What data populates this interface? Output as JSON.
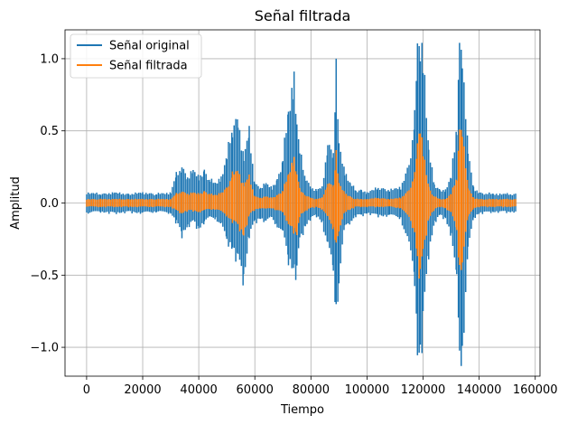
{
  "chart_data": {
    "type": "line",
    "title": "Señal filtrada",
    "xlabel": "Tiempo",
    "ylabel": "Amplitud",
    "xlim": [
      -7700,
      161700
    ],
    "ylim": [
      -1.2,
      1.2
    ],
    "grid": true,
    "legend_position": "top-left",
    "x_ticks": [
      0,
      20000,
      40000,
      60000,
      80000,
      100000,
      120000,
      140000,
      160000
    ],
    "x_tick_labels": [
      "0",
      "20000",
      "40000",
      "60000",
      "80000",
      "100000",
      "120000",
      "140000",
      "160000"
    ],
    "y_ticks": [
      -1.0,
      -0.5,
      0.0,
      0.5,
      1.0
    ],
    "y_tick_labels": [
      "−1.0",
      "−0.5",
      "0.0",
      "0.5",
      "1.0"
    ],
    "series": [
      {
        "name": "Señal original",
        "color": "#1f77b4",
        "x": [
          0,
          5000,
          10000,
          15000,
          20000,
          25000,
          30000,
          32000,
          34000,
          36000,
          38000,
          40000,
          42000,
          44000,
          46000,
          48000,
          50000,
          52000,
          54000,
          56000,
          58000,
          60000,
          62000,
          64000,
          66000,
          68000,
          70000,
          72000,
          74000,
          75000,
          76000,
          78000,
          80000,
          82000,
          84000,
          86000,
          88000,
          89000,
          90000,
          92000,
          94000,
          96000,
          98000,
          100000,
          104000,
          108000,
          112000,
          115000,
          117000,
          118000,
          119000,
          120000,
          122000,
          124000,
          126000,
          128000,
          130000,
          132000,
          133000,
          134000,
          136000,
          138000,
          140000,
          145000,
          150000,
          153000
        ],
        "upper": [
          0.08,
          0.07,
          0.08,
          0.07,
          0.08,
          0.07,
          0.08,
          0.22,
          0.28,
          0.2,
          0.25,
          0.2,
          0.25,
          0.18,
          0.15,
          0.2,
          0.35,
          0.6,
          0.65,
          0.35,
          0.55,
          0.15,
          0.12,
          0.15,
          0.12,
          0.18,
          0.35,
          0.7,
          0.98,
          0.6,
          0.4,
          0.2,
          0.12,
          0.1,
          0.12,
          0.45,
          0.4,
          1.02,
          0.45,
          0.25,
          0.15,
          0.1,
          0.1,
          0.08,
          0.12,
          0.1,
          0.12,
          0.3,
          0.65,
          1.2,
          1.2,
          1.2,
          0.4,
          0.15,
          0.1,
          0.1,
          0.2,
          0.6,
          1.2,
          1.2,
          0.4,
          0.12,
          0.08,
          0.07,
          0.07,
          0.07
        ],
        "lower": [
          -0.08,
          -0.07,
          -0.08,
          -0.07,
          -0.08,
          -0.07,
          -0.08,
          -0.15,
          -0.25,
          -0.18,
          -0.15,
          -0.2,
          -0.15,
          -0.12,
          -0.12,
          -0.18,
          -0.3,
          -0.35,
          -0.45,
          -0.6,
          -0.25,
          -0.15,
          -0.12,
          -0.15,
          -0.12,
          -0.18,
          -0.25,
          -0.45,
          -0.52,
          -0.55,
          -0.3,
          -0.18,
          -0.12,
          -0.1,
          -0.15,
          -0.35,
          -0.55,
          -0.85,
          -0.65,
          -0.2,
          -0.15,
          -0.1,
          -0.1,
          -0.08,
          -0.1,
          -0.1,
          -0.12,
          -0.35,
          -0.6,
          -1.15,
          -1.2,
          -0.95,
          -0.4,
          -0.15,
          -0.1,
          -0.12,
          -0.25,
          -0.65,
          -1.2,
          -1.2,
          -0.4,
          -0.12,
          -0.08,
          -0.07,
          -0.07,
          -0.07
        ]
      },
      {
        "name": "Señal filtrada",
        "color": "#ff7f0e",
        "x": [
          0,
          5000,
          10000,
          15000,
          20000,
          25000,
          30000,
          32000,
          34000,
          36000,
          38000,
          40000,
          42000,
          44000,
          46000,
          48000,
          50000,
          52000,
          54000,
          56000,
          58000,
          60000,
          62000,
          64000,
          66000,
          68000,
          70000,
          72000,
          74000,
          75000,
          76000,
          78000,
          80000,
          82000,
          84000,
          86000,
          88000,
          89000,
          90000,
          92000,
          94000,
          96000,
          98000,
          100000,
          104000,
          108000,
          112000,
          115000,
          117000,
          118000,
          119000,
          120000,
          122000,
          124000,
          126000,
          128000,
          130000,
          132000,
          133000,
          134000,
          136000,
          138000,
          140000,
          145000,
          150000,
          153000
        ],
        "upper": [
          0.03,
          0.03,
          0.03,
          0.03,
          0.03,
          0.03,
          0.03,
          0.07,
          0.09,
          0.07,
          0.08,
          0.07,
          0.09,
          0.07,
          0.06,
          0.08,
          0.12,
          0.22,
          0.25,
          0.14,
          0.2,
          0.05,
          0.04,
          0.05,
          0.04,
          0.06,
          0.1,
          0.22,
          0.35,
          0.22,
          0.12,
          0.06,
          0.04,
          0.03,
          0.04,
          0.15,
          0.14,
          0.38,
          0.15,
          0.08,
          0.05,
          0.03,
          0.03,
          0.03,
          0.04,
          0.03,
          0.04,
          0.1,
          0.22,
          0.45,
          0.58,
          0.42,
          0.12,
          0.05,
          0.03,
          0.03,
          0.07,
          0.2,
          0.55,
          0.58,
          0.12,
          0.04,
          0.03,
          0.03,
          0.03,
          0.03
        ],
        "lower": [
          -0.03,
          -0.03,
          -0.03,
          -0.03,
          -0.03,
          -0.03,
          -0.03,
          -0.06,
          -0.08,
          -0.06,
          -0.06,
          -0.07,
          -0.06,
          -0.05,
          -0.05,
          -0.07,
          -0.1,
          -0.14,
          -0.18,
          -0.25,
          -0.1,
          -0.05,
          -0.04,
          -0.05,
          -0.04,
          -0.06,
          -0.08,
          -0.16,
          -0.22,
          -0.28,
          -0.1,
          -0.06,
          -0.04,
          -0.03,
          -0.05,
          -0.12,
          -0.2,
          -0.32,
          -0.26,
          -0.07,
          -0.05,
          -0.03,
          -0.03,
          -0.03,
          -0.03,
          -0.03,
          -0.04,
          -0.12,
          -0.22,
          -0.45,
          -0.58,
          -0.4,
          -0.12,
          -0.05,
          -0.03,
          -0.04,
          -0.08,
          -0.22,
          -0.52,
          -0.48,
          -0.12,
          -0.04,
          -0.03,
          -0.03,
          -0.03,
          -0.03
        ]
      }
    ]
  }
}
